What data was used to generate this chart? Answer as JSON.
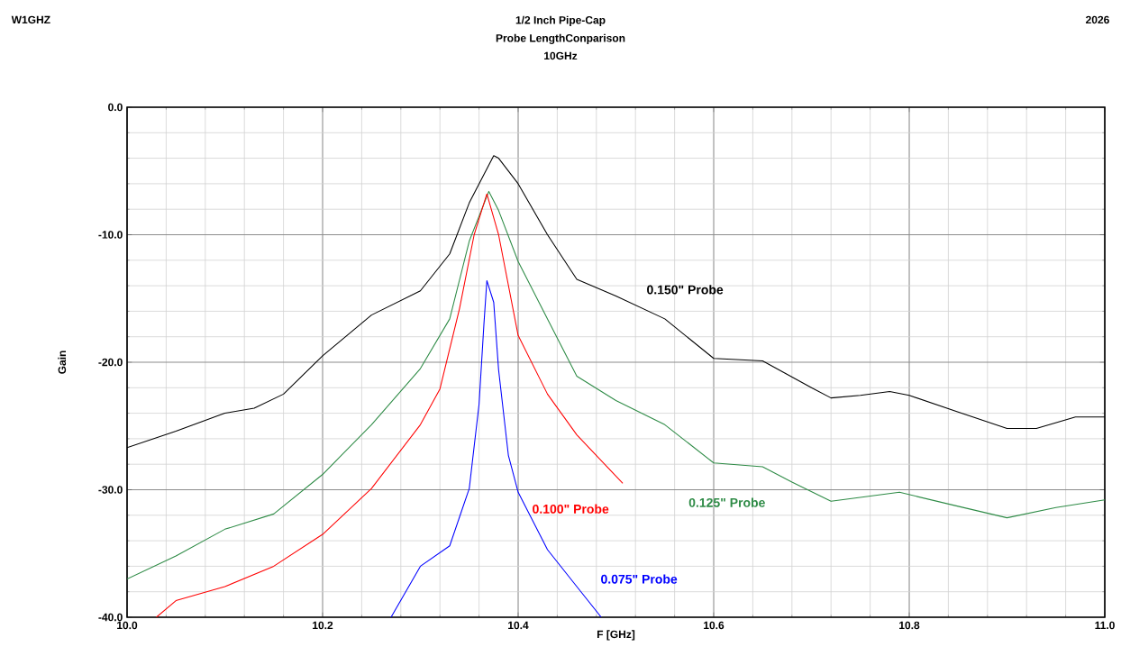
{
  "chart_data": {
    "type": "line",
    "title": "1/2 Inch Pipe-Cap",
    "subtitle": "Probe LengthConparison",
    "annotations": [
      "10GHz",
      "W1GHZ",
      "2026"
    ],
    "xlabel": "F [GHz]",
    "ylabel": "Gain",
    "xlim": [
      10.0,
      11.0
    ],
    "ylim": [
      -40,
      0
    ],
    "xticks": [
      {
        "value": 10.0,
        "label": "10.0"
      },
      {
        "value": 10.2,
        "label": "10.2"
      },
      {
        "value": 10.4,
        "label": "10.4"
      },
      {
        "value": 10.6,
        "label": "10.6"
      },
      {
        "value": 10.8,
        "label": "10.8"
      },
      {
        "value": 11.0,
        "label": "11.0"
      }
    ],
    "yticks": [
      {
        "value": 0,
        "label": "0.0"
      },
      {
        "value": -10,
        "label": "-10.0"
      },
      {
        "value": -20,
        "label": "-20.0"
      },
      {
        "value": -30,
        "label": "-30.0"
      },
      {
        "value": -40,
        "label": "-40.0"
      }
    ],
    "grid": true,
    "legend": false,
    "marker": "none",
    "line_style": "solid",
    "series": [
      {
        "name": "0.150\" Probe",
        "color": "#000000",
        "x": [
          10.0,
          10.05,
          10.1,
          10.13,
          10.16,
          10.2,
          10.25,
          10.3,
          10.33,
          10.35,
          10.375,
          10.38,
          10.4,
          10.43,
          10.46,
          10.5,
          10.55,
          10.6,
          10.65,
          10.7,
          10.72,
          10.75,
          10.78,
          10.8,
          10.85,
          10.9,
          10.93,
          10.97,
          11.0
        ],
        "values": [
          -26.7,
          -25.4,
          -24.0,
          -23.6,
          -22.5,
          -19.5,
          -16.3,
          -14.4,
          -11.5,
          -7.5,
          -3.8,
          -4.0,
          -6.0,
          -10.0,
          -13.5,
          -14.8,
          -16.6,
          -19.7,
          -19.9,
          -22.0,
          -22.8,
          -22.6,
          -22.3,
          -22.6,
          -23.9,
          -25.2,
          -25.2,
          -24.3,
          -24.3
        ]
      },
      {
        "name": "0.125\" Probe",
        "color": "#2e8b46",
        "x": [
          10.0,
          10.05,
          10.1,
          10.15,
          10.2,
          10.25,
          10.3,
          10.33,
          10.35,
          10.37,
          10.38,
          10.4,
          10.43,
          10.46,
          10.5,
          10.55,
          10.6,
          10.65,
          10.68,
          10.72,
          10.79,
          10.85,
          10.9,
          10.95,
          11.0
        ],
        "values": [
          -37.0,
          -35.2,
          -33.1,
          -31.9,
          -28.8,
          -24.9,
          -20.5,
          -16.6,
          -10.5,
          -6.6,
          -8.1,
          -12.1,
          -16.6,
          -21.1,
          -23.0,
          -24.9,
          -27.9,
          -28.2,
          -29.4,
          -30.9,
          -30.2,
          -31.3,
          -32.2,
          -31.4,
          -30.8
        ]
      },
      {
        "name": "0.100\" Probe",
        "color": "#ff0000",
        "x": [
          10.03,
          10.05,
          10.1,
          10.15,
          10.2,
          10.25,
          10.3,
          10.32,
          10.34,
          10.355,
          10.368,
          10.38,
          10.4,
          10.43,
          10.46,
          10.507
        ],
        "values": [
          -40.0,
          -38.7,
          -37.6,
          -36.0,
          -33.5,
          -29.9,
          -24.9,
          -22.1,
          -15.8,
          -10.0,
          -6.8,
          -10.0,
          -17.9,
          -22.5,
          -25.7,
          -29.5
        ]
      },
      {
        "name": "0.075\" Probe",
        "color": "#0000ff",
        "x": [
          10.27,
          10.3,
          10.33,
          10.35,
          10.36,
          10.365,
          10.368,
          10.375,
          10.38,
          10.39,
          10.4,
          10.43,
          10.46,
          10.485
        ],
        "values": [
          -40.0,
          -36.0,
          -34.4,
          -29.9,
          -23.3,
          -17.0,
          -13.6,
          -15.3,
          -20.6,
          -27.3,
          -30.2,
          -34.7,
          -37.6,
          -40.0
        ]
      }
    ]
  }
}
